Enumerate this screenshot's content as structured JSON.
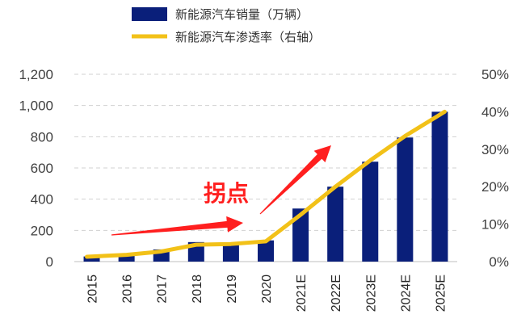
{
  "chart_data": {
    "type": "bar+line",
    "categories": [
      "2015",
      "2016",
      "2017",
      "2018",
      "2019",
      "2020",
      "2021E",
      "2022E",
      "2023E",
      "2024E",
      "2025E"
    ],
    "series": [
      {
        "name": "新能源汽车销量（万辆）",
        "type": "bar",
        "axis": "left",
        "color": "#0a1f7a",
        "values": [
          33,
          50,
          78,
          125,
          120,
          136,
          340,
          480,
          640,
          795,
          960
        ]
      },
      {
        "name": "新能源汽车渗透率（右轴）",
        "type": "line",
        "axis": "right",
        "color": "#f2c118",
        "values": [
          1.3,
          1.8,
          2.7,
          4.5,
          4.7,
          5.4,
          12.5,
          20.0,
          27.0,
          33.5,
          40.0
        ]
      }
    ],
    "y_left": {
      "range": [
        0,
        1200
      ],
      "ticks": [
        "0",
        "200",
        "400",
        "600",
        "800",
        "1,000",
        "1,200"
      ]
    },
    "y_right": {
      "range": [
        0,
        50
      ],
      "ticks": [
        "0%",
        "10%",
        "20%",
        "30%",
        "40%",
        "50%"
      ]
    },
    "grid": "horizontal-dashed",
    "legend_position": "top-center",
    "annotation": {
      "text": "拐点",
      "color": "#ff1f1f"
    }
  }
}
